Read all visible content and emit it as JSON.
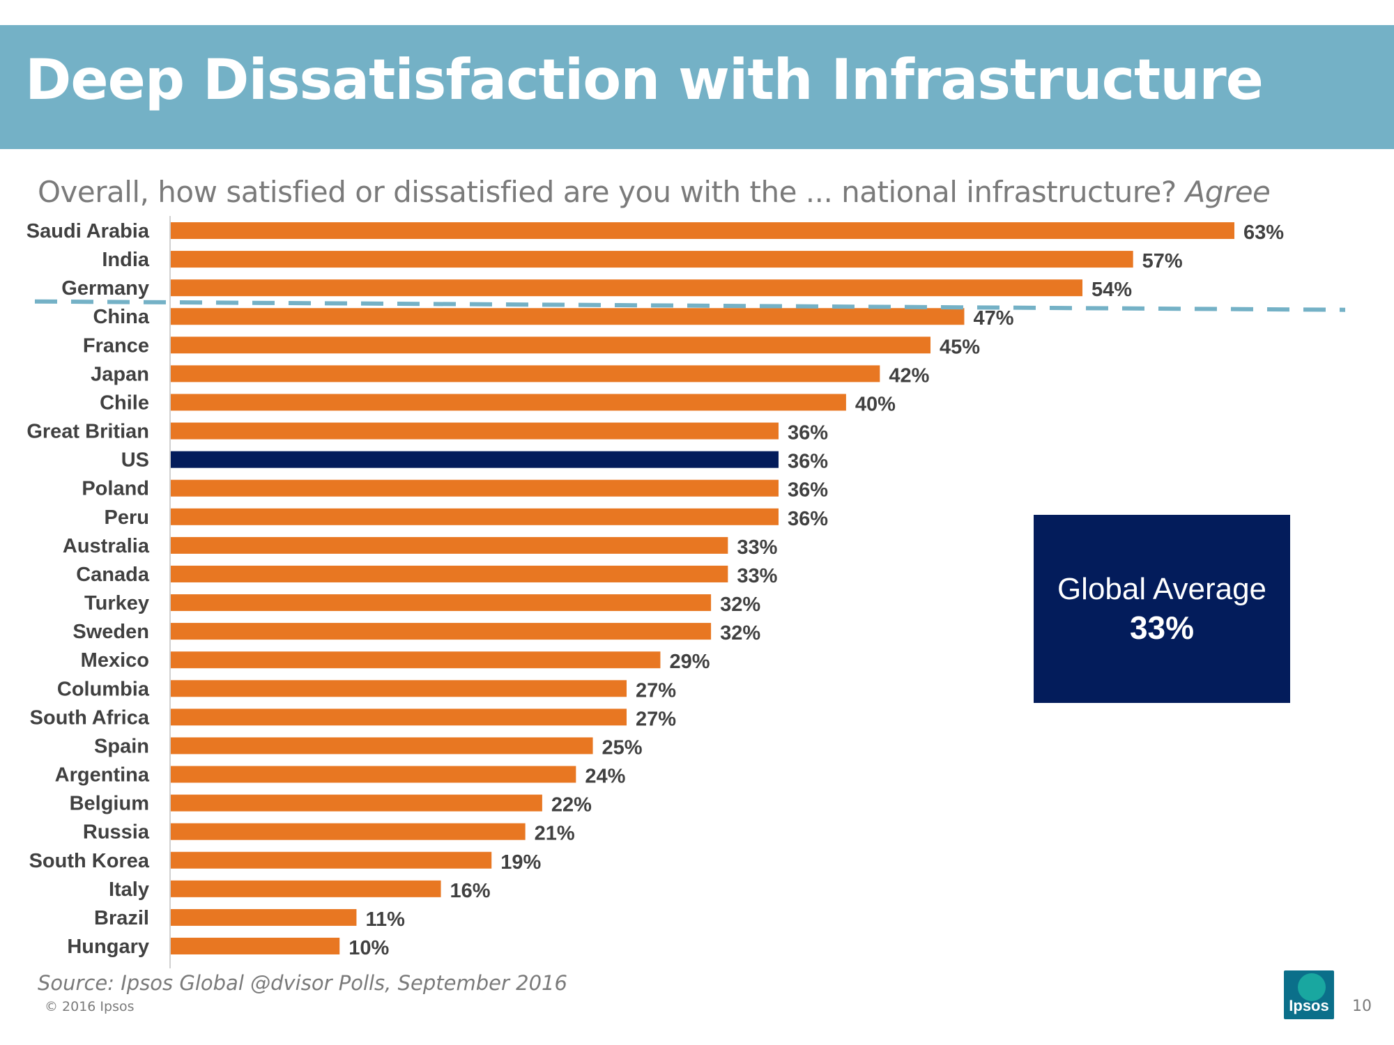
{
  "title": "Deep Dissatisfaction with Infrastructure",
  "subtitle": {
    "question": "Overall, how satisfied or dissatisfied are you with the ... national infrastructure?",
    "emphasis": "Agree"
  },
  "global_average_box": {
    "label": "Global Average",
    "value": "33%"
  },
  "source": "Source: Ipsos Global @dvisor Polls, September 2016",
  "copyright": "© 2016 Ipsos",
  "logo_text": "Ipsos",
  "page_number": "10",
  "colors": {
    "header_band": "#74b1c6",
    "bar": "#e87722",
    "highlight_bar": "#031c5b",
    "dashed_line": "#74b1c6",
    "label_text": "#404040"
  },
  "chart_data": {
    "type": "bar",
    "orientation": "horizontal",
    "categories": [
      "Saudi Arabia",
      "India",
      "Germany",
      "China",
      "France",
      "Japan",
      "Chile",
      "Great Britian",
      "US",
      "Poland",
      "Peru",
      "Australia",
      "Canada",
      "Turkey",
      "Sweden",
      "Mexico",
      "Columbia",
      "South Africa",
      "Spain",
      "Argentina",
      "Belgium",
      "Russia",
      "South Korea",
      "Italy",
      "Brazil",
      "Hungary"
    ],
    "values": [
      63,
      57,
      54,
      47,
      45,
      42,
      40,
      36,
      36,
      36,
      36,
      33,
      33,
      32,
      32,
      29,
      27,
      27,
      25,
      24,
      22,
      21,
      19,
      16,
      11,
      10
    ],
    "value_labels": [
      "63%",
      "57%",
      "54%",
      "47%",
      "45%",
      "42%",
      "40%",
      "36%",
      "36%",
      "36%",
      "36%",
      "33%",
      "33%",
      "32%",
      "32%",
      "29%",
      "27%",
      "27%",
      "25%",
      "24%",
      "22%",
      "21%",
      "19%",
      "16%",
      "11%",
      "10%"
    ],
    "highlight": "US",
    "xlim": [
      0,
      63
    ],
    "grid": false,
    "legend": "none",
    "annotation": "dashed separator line between Germany and China"
  }
}
